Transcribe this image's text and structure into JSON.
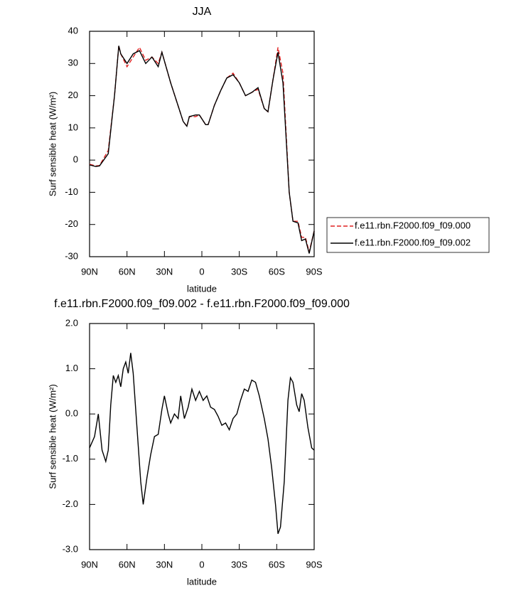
{
  "chart_data": [
    {
      "type": "line",
      "title": "JJA",
      "xlabel": "latitude",
      "ylabel": "Surf sensible heat (W/m²)",
      "x": [
        90,
        85,
        82,
        75,
        70,
        66.6,
        65,
        60,
        55,
        50,
        45,
        40,
        35,
        32,
        25,
        20,
        15,
        12,
        10,
        5,
        2,
        -3,
        -5,
        -10,
        -15,
        -20,
        -25,
        -30,
        -35,
        -40,
        -45,
        -50,
        -53,
        -57,
        -61,
        -65,
        -70,
        -73,
        -77,
        -80,
        -83,
        -86,
        -90
      ],
      "series": [
        {
          "name": "f.e11.rbn.F2000.f09_f09.000",
          "color": "#e02020",
          "line_style": "dashed",
          "values": [
            -1.3,
            -1.8,
            -1.7,
            3,
            20,
            35.5,
            33,
            29,
            32,
            35,
            31,
            32,
            30,
            33.5,
            24,
            18,
            12,
            10.5,
            13.5,
            13.5,
            14,
            11,
            11,
            17,
            21.5,
            25.5,
            27,
            24,
            20,
            21,
            22,
            16,
            15,
            25,
            35,
            27,
            -10,
            -19,
            -19,
            -24,
            -24,
            -28.5,
            -22
          ]
        },
        {
          "name": "f.e11.rbn.F2000.f09_f09.002",
          "color": "#000000",
          "line_style": "solid",
          "values": [
            -1.5,
            -2,
            -1.8,
            2,
            20,
            35.5,
            33,
            30,
            33,
            34,
            30,
            32,
            29,
            33.5,
            24,
            18,
            12,
            10.5,
            13.5,
            14,
            14,
            11,
            11,
            17,
            21.5,
            25.5,
            26.5,
            24,
            20,
            21,
            22.5,
            16,
            15,
            25,
            33.5,
            24,
            -10,
            -19,
            -19.5,
            -25,
            -24.5,
            -29,
            -22
          ]
        }
      ],
      "xlim": [
        90,
        -90
      ],
      "xticks": [
        {
          "value": 90,
          "label": "90N"
        },
        {
          "value": 60,
          "label": "60N"
        },
        {
          "value": 30,
          "label": "30N"
        },
        0,
        {
          "value": -30,
          "label": "30S"
        },
        {
          "value": -60,
          "label": "60S"
        },
        {
          "value": -90,
          "label": "90S"
        }
      ],
      "ylim": [
        -30,
        40
      ],
      "yticks": [
        -30,
        -20,
        -10,
        0,
        10,
        20,
        30,
        40
      ]
    },
    {
      "type": "line",
      "title": "f.e11.rbn.F2000.f09_f09.002 - f.e11.rbn.F2000.f09_f09.000",
      "xlabel": "latitude",
      "ylabel": "Surf sensible heat (W/m²)",
      "x": [
        90,
        86,
        83,
        80,
        77,
        75,
        73,
        71,
        69,
        67,
        65,
        63,
        61,
        59,
        57,
        55,
        52,
        49,
        47,
        44,
        41,
        38,
        35,
        32,
        30,
        27,
        25,
        22,
        19,
        17,
        14,
        11,
        8,
        5,
        2,
        -1,
        -4,
        -7,
        -10,
        -13,
        -16,
        -19,
        -22,
        -25,
        -28,
        -31,
        -34,
        -37,
        -40,
        -43,
        -46,
        -50,
        -53,
        -56,
        -59,
        -61,
        -63,
        -66,
        -69,
        -71,
        -73,
        -76,
        -78,
        -80,
        -82,
        -85,
        -88,
        -90
      ],
      "values": [
        -0.75,
        -0.5,
        0.0,
        -0.8,
        -1.05,
        -0.8,
        0.2,
        0.85,
        0.7,
        0.85,
        0.6,
        1.0,
        1.15,
        0.9,
        1.35,
        0.9,
        -0.3,
        -1.5,
        -2.0,
        -1.4,
        -0.9,
        -0.5,
        -0.45,
        0.1,
        0.4,
        0.0,
        -0.2,
        0.0,
        -0.1,
        0.4,
        -0.1,
        0.15,
        0.55,
        0.3,
        0.5,
        0.3,
        0.4,
        0.15,
        0.1,
        -0.05,
        -0.25,
        -0.2,
        -0.35,
        -0.1,
        0.0,
        0.3,
        0.55,
        0.5,
        0.75,
        0.7,
        0.4,
        -0.1,
        -0.55,
        -1.2,
        -2.0,
        -2.65,
        -2.5,
        -1.5,
        0.3,
        0.8,
        0.7,
        0.2,
        0.05,
        0.45,
        0.3,
        -0.3,
        -0.75,
        -0.8
      ],
      "color": "#000000",
      "xlim": [
        90,
        -90
      ],
      "xticks": [
        {
          "value": 90,
          "label": "90N"
        },
        {
          "value": 60,
          "label": "60N"
        },
        {
          "value": 30,
          "label": "30N"
        },
        0,
        {
          "value": -30,
          "label": "30S"
        },
        {
          "value": -60,
          "label": "60S"
        },
        {
          "value": -90,
          "label": "90S"
        }
      ],
      "ylim": [
        -3,
        2
      ],
      "yticks": [
        {
          "value": -3,
          "label": "-3.0"
        },
        {
          "value": -2,
          "label": "-2.0"
        },
        {
          "value": -1,
          "label": "-1.0"
        },
        {
          "value": 0,
          "label": "0.0"
        },
        {
          "value": 1,
          "label": "1.0"
        },
        {
          "value": 2,
          "label": "2.0"
        }
      ]
    }
  ]
}
